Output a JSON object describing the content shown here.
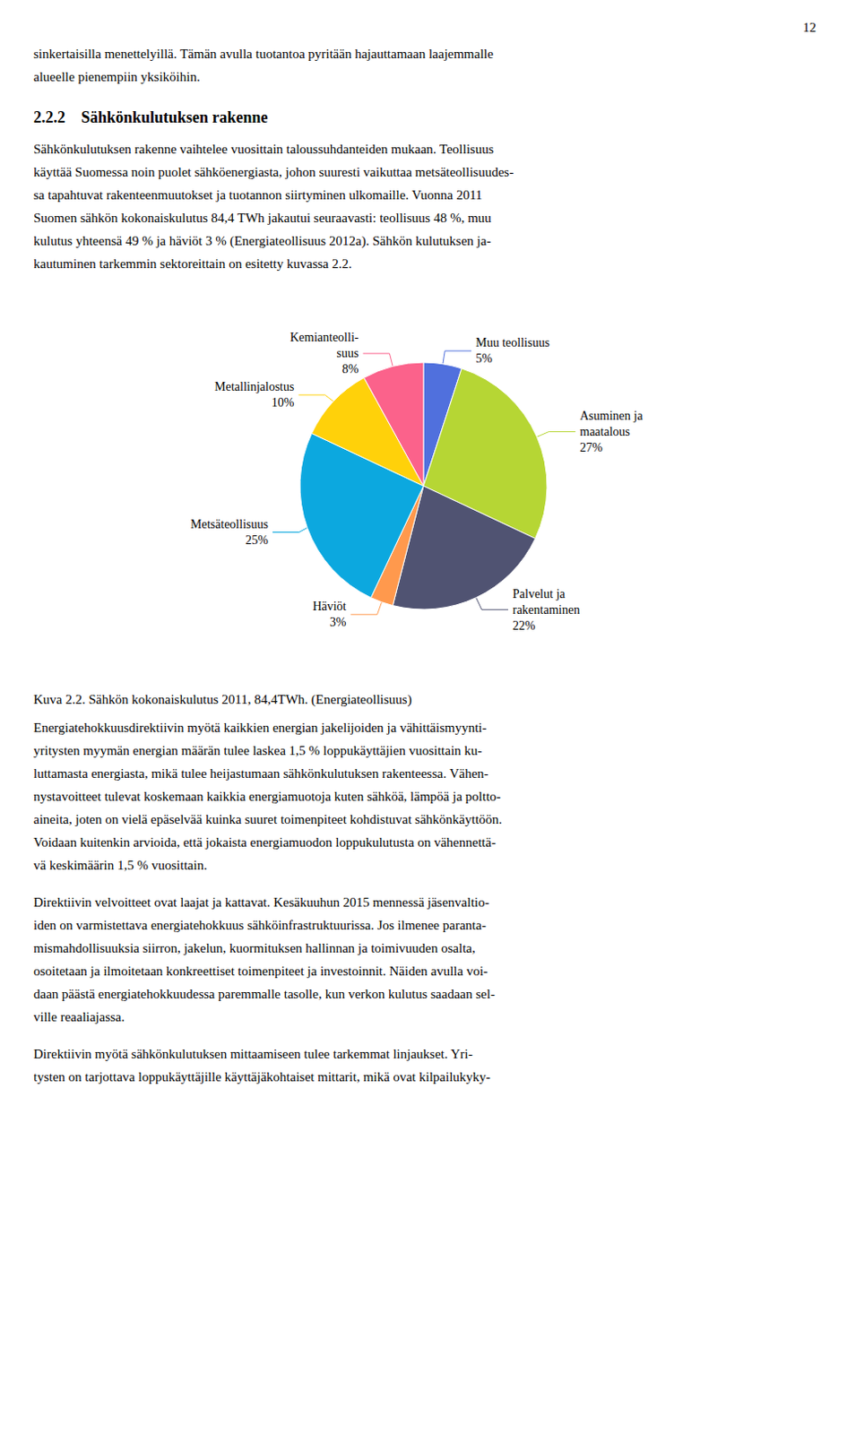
{
  "page_number": "12",
  "top_text_lines": [
    "sinkertaisilla menettelyillä. Tämän avulla tuotantoa pyritään hajauttamaan laajemmalle",
    "alueelle pienempiin yksiköihin."
  ],
  "section_heading": "2.2.2 Sähkönkulutuksen rakenne",
  "body_text_lines": [
    "Sähkönkulutuksen rakenne vaihtelee vuosittain taloussuhdanteiden mukaan. Teollisuus",
    "käyttää Suomessa noin puolet sähköenergiasta, johon suuresti vaikuttaa metsäteollisuudes-",
    "sa tapahtuvat rakenteenmuutokset ja tuotannon siirtyminen ulkomaille. Vuonna 2011",
    "Suomen sähkön kokonaiskulutus 84,4 TWh jakautui seuraavasti: teollisuus 48 %, muu",
    "kulutus yhteensä 49 % ja häviöt 3 % (Energiateollisuus 2012a). Sähkön kulutuksen ja-",
    "kautuminen tarkemmin sektoreittain on esitetty kuvassa 2.2."
  ],
  "bottom_paragraphs": [
    [
      "Energiatehokkuusdirektiivin myötä kaikkien energian jakelijoiden ja vähittäismyynti-",
      "yritysten myymän energian määrän tulee laskea 1,5 % loppukäyttäjien vuosittain ku-",
      "luttamasta energiasta, mikä tulee heijastumaan sähkönkulutuksen rakenteessa. Vähen-",
      "nystavoitteet tulevat koskemaan kaikkia energiamuotoja kuten sähköä, lämpöä ja poltto-",
      "aineita, joten on vielä epäselvää kuinka suuret toimenpiteet kohdistuvat sähkönkäyttöön.",
      "Voidaan kuitenkin arvioida, että jokaista energiamuodon loppukulutusta on vähennettä-",
      "vä keskimäärin 1,5 % vuosittain."
    ],
    [
      "Direktiivin velvoitteet ovat laajat ja kattavat. Kesäkuuhun 2015 mennessä jäsenvaltio-",
      "iden on varmistettava energiatehokkuus sähköinfrastruktuurissa. Jos ilmenee paranta-",
      "mismahdollisuuksia siirron, jakelun, kuormituksen hallinnan ja toimivuuden osalta,",
      "osoitetaan ja ilmoitetaan konkreettiset toimenpiteet ja investoinnit. Näiden avulla voi-",
      "daan päästä energiatehokkuudessa paremmalle tasolle, kun verkon kulutus saadaan sel-",
      "ville reaaliajassa."
    ],
    [
      "Direktiivin myötä sähkönkulutuksen mittaamiseen tulee tarkemmat linjaukset. Yri-",
      "tysten on tarjottava loppukäyttäjille käyttäjäkohtaiset mittarit, mikä ovat kilpailukyky-"
    ]
  ],
  "chart_data": {
    "type": "pie",
    "title": "Kuva 2.2. Sähkön kokonaiskulutus 2011, 84,4TWh. (Energiateollisuus)",
    "categories": [
      "Muu teollisuus",
      "Asuminen ja\nmaatalous",
      "Palvelut ja\nrakentaminen",
      "Häviöt",
      "Metsäteollisuus",
      "Metallinjalostus",
      "Kemianteolli-\nsuus"
    ],
    "values": [
      5,
      27,
      22,
      3,
      25,
      10,
      8
    ],
    "value_labels": [
      "5%",
      "27%",
      "22%",
      "3%",
      "25%",
      "10%",
      "8%"
    ],
    "data_labels": true
  }
}
